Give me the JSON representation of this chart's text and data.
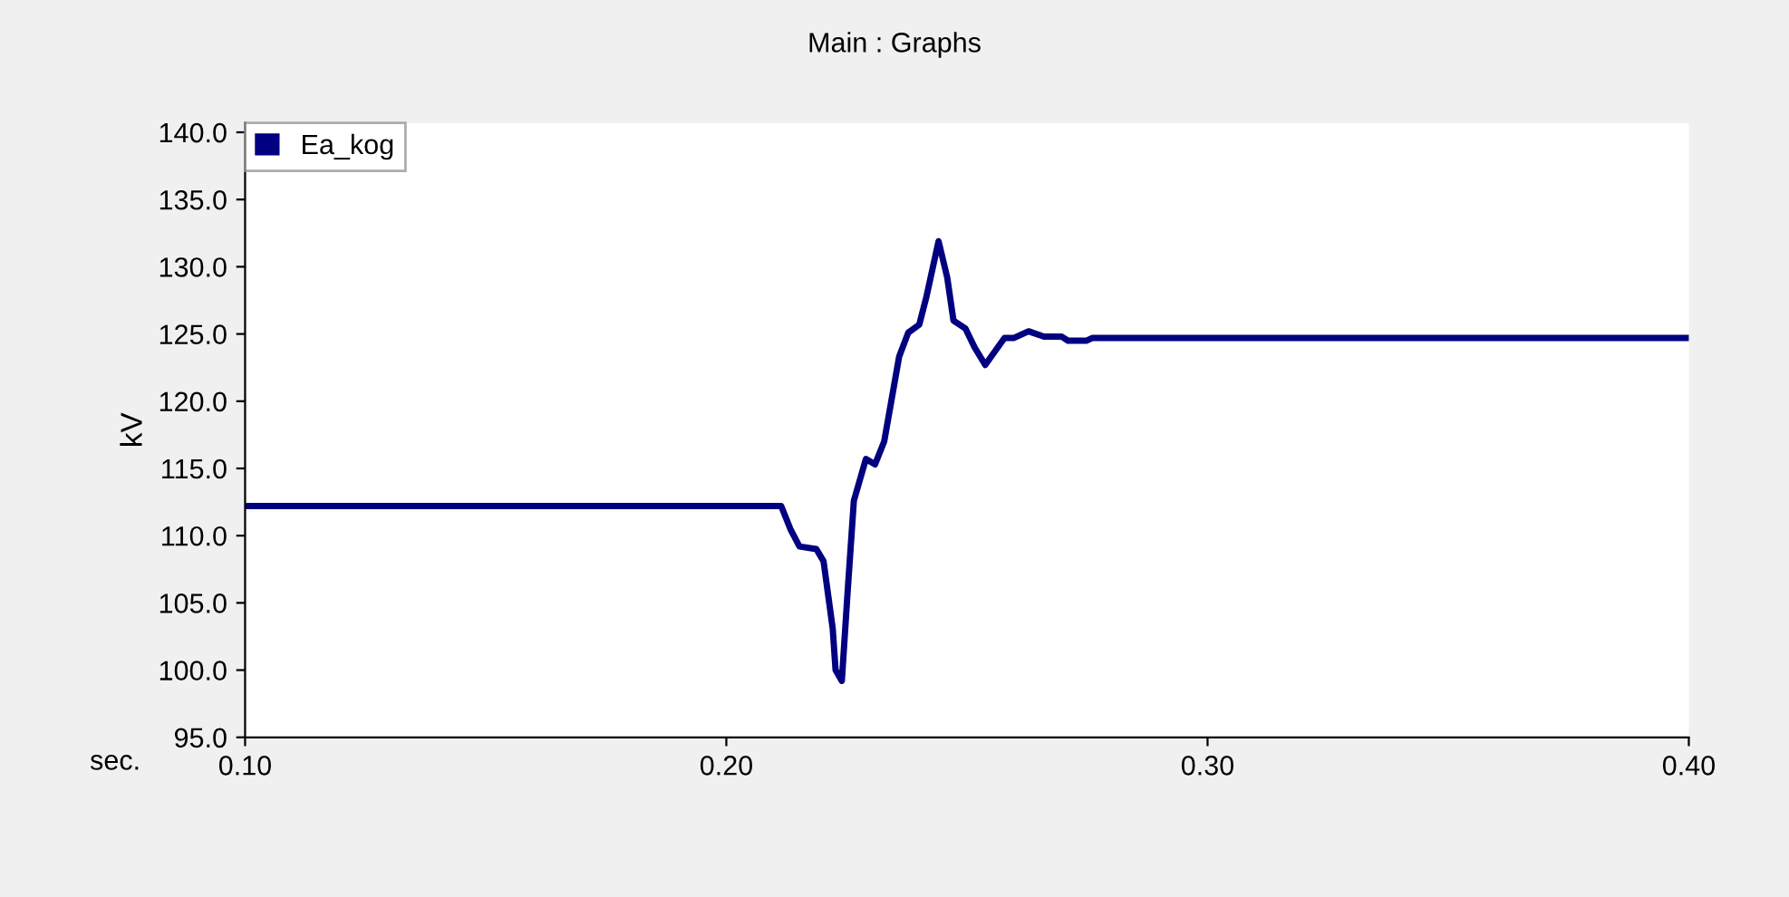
{
  "chart_data": {
    "type": "line",
    "title": "Main : Graphs",
    "xlabel": "sec.",
    "ylabel": "kV",
    "x": [
      0.1,
      0.2114,
      0.2133,
      0.2152,
      0.2187,
      0.2202,
      0.2221,
      0.2227,
      0.224,
      0.2252,
      0.2265,
      0.229,
      0.2309,
      0.2328,
      0.2359,
      0.2378,
      0.2401,
      0.2416,
      0.2441,
      0.2459,
      0.2472,
      0.2497,
      0.2516,
      0.2538,
      0.2578,
      0.2597,
      0.2628,
      0.266,
      0.2697,
      0.271,
      0.2748,
      0.276,
      0.4
    ],
    "series": [
      {
        "name": "Ea_kog",
        "color": "#000080",
        "values": [
          112.2,
          112.2,
          110.5,
          109.2,
          109.0,
          108.1,
          103.1,
          100.0,
          99.2,
          105.8,
          112.6,
          115.7,
          115.3,
          117.0,
          123.3,
          125.1,
          125.7,
          127.8,
          131.9,
          129.2,
          126.0,
          125.4,
          124.0,
          122.7,
          124.7,
          124.7,
          125.2,
          124.8,
          124.8,
          124.5,
          124.5,
          124.7,
          124.7
        ]
      }
    ],
    "xlim": [
      0.1,
      0.4
    ],
    "xticks": [
      {
        "value": 0.1,
        "label": "0.10"
      },
      {
        "value": 0.2,
        "label": "0.20"
      },
      {
        "value": 0.3,
        "label": "0.30"
      },
      {
        "value": 0.4,
        "label": "0.40"
      }
    ],
    "ylim": [
      95,
      140.7
    ],
    "yticks": [
      {
        "value": 95,
        "label": "95.0"
      },
      {
        "value": 100,
        "label": "100.0"
      },
      {
        "value": 105,
        "label": "105.0"
      },
      {
        "value": 110,
        "label": "110.0"
      },
      {
        "value": 115,
        "label": "115.0"
      },
      {
        "value": 120,
        "label": "120.0"
      },
      {
        "value": 125,
        "label": "125.0"
      },
      {
        "value": 130,
        "label": "130.0"
      },
      {
        "value": 135,
        "label": "135.0"
      },
      {
        "value": 140,
        "label": "140.0"
      }
    ],
    "grid": false,
    "legend": "top left",
    "marker": "none",
    "line_style": "solid"
  }
}
